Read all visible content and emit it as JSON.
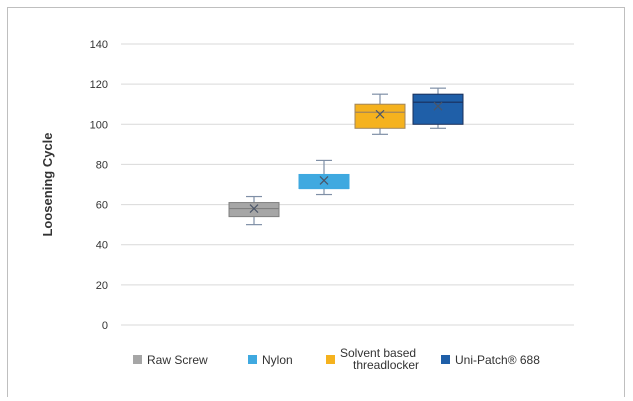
{
  "chart_data": {
    "type": "box",
    "title": "",
    "xlabel": "",
    "ylabel": "Loosening Cycle",
    "ylim": [
      0,
      140
    ],
    "yticks": [
      0,
      20,
      40,
      60,
      80,
      100,
      120,
      140
    ],
    "grid": true,
    "legend_position": "bottom",
    "series": [
      {
        "name": "Raw Screw",
        "color": "#a6a6a6",
        "stroke": "#7f7f7f",
        "min": 50,
        "q1": 54,
        "median": 58,
        "q3": 61,
        "max": 64,
        "mean": 58
      },
      {
        "name": "Nylon",
        "color": "#3fa9e0",
        "stroke": "#3fa9e0",
        "min": 65,
        "q1": 68,
        "median": 68,
        "q3": 75,
        "max": 82,
        "mean": 72
      },
      {
        "name": "Solvent based threadlocker",
        "color": "#f5b21e",
        "stroke": "#a0855b",
        "min": 95,
        "q1": 98,
        "median": 106,
        "q3": 110,
        "max": 115,
        "mean": 105
      },
      {
        "name": "Uni-Patch® 688",
        "color": "#1f5fa8",
        "stroke": "#1a2f5a",
        "min": 98,
        "q1": 100,
        "median": 111,
        "q3": 115,
        "max": 118,
        "mean": 109
      }
    ],
    "legend": [
      {
        "label_lines": [
          "Raw Screw"
        ],
        "color": "#a6a6a6"
      },
      {
        "label_lines": [
          "Nylon"
        ],
        "color": "#3fa9e0"
      },
      {
        "label_lines": [
          "Solvent based",
          "threadlocker"
        ],
        "color": "#f5b21e"
      },
      {
        "label_lines": [
          "Uni-Patch® 688"
        ],
        "color": "#1f5fa8"
      }
    ]
  }
}
